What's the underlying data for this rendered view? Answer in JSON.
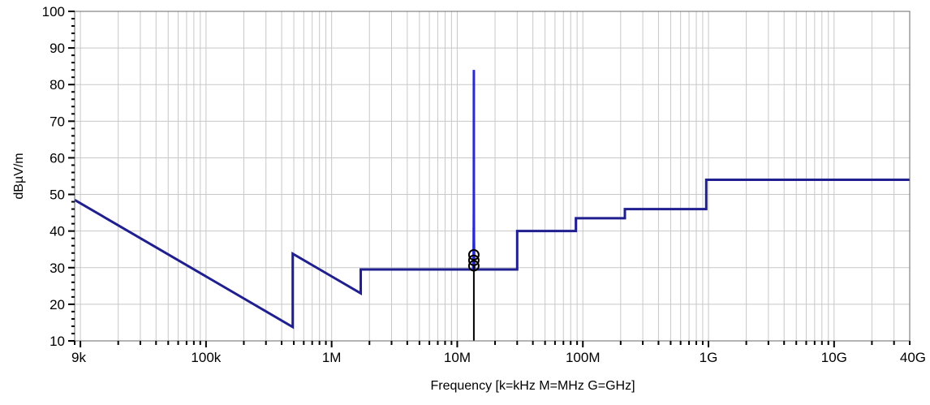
{
  "chart_data": {
    "type": "line",
    "title": "",
    "xlabel": "Frequency [k=kHz M=MHz G=GHz]",
    "ylabel": "dBµV/m",
    "x_scale": "log",
    "xlim": [
      9000,
      40000000000
    ],
    "ylim": [
      10,
      100
    ],
    "grid": true,
    "x_ticks": [
      {
        "value": 9000,
        "label": "9k"
      },
      {
        "value": 100000,
        "label": "100k"
      },
      {
        "value": 1000000,
        "label": "1M"
      },
      {
        "value": 10000000,
        "label": "10M"
      },
      {
        "value": 100000000,
        "label": "100M"
      },
      {
        "value": 1000000000,
        "label": "1G"
      },
      {
        "value": 10000000000,
        "label": "10G"
      },
      {
        "value": 40000000000,
        "label": "40G"
      }
    ],
    "y_ticks": [
      10,
      20,
      30,
      40,
      50,
      60,
      70,
      80,
      90,
      100
    ],
    "series": [
      {
        "color": "#1f1f8f",
        "x": [
          9000,
          490000,
          490000,
          1705000,
          1705000,
          13553000,
          13553000,
          13567000,
          13567000,
          30000000,
          30000000,
          88000000,
          88000000,
          216000000,
          216000000,
          960000000,
          960000000,
          40000000000
        ],
        "y": [
          48.5,
          13.8,
          33.8,
          23.0,
          29.5,
          29.5,
          40.5,
          40.5,
          29.5,
          29.5,
          40.0,
          40.0,
          43.5,
          43.5,
          46.0,
          46.0,
          54.0,
          54.0
        ]
      },
      {
        "color": "#2a2ad0",
        "x": [
          13400000,
          13480000,
          13530000,
          13553000,
          13560000,
          13567000,
          13590000,
          13650000,
          13720000
        ],
        "y": [
          29.5,
          33.0,
          38.0,
          50.0,
          84.0,
          50.0,
          38.0,
          33.0,
          29.5
        ]
      }
    ],
    "markers": [
      {
        "x": 13560000,
        "y": 33.5
      },
      {
        "x": 13560000,
        "y": 32.0
      },
      {
        "x": 13560000,
        "y": 30.5
      }
    ],
    "vertical_line": {
      "x": 13560000,
      "from": 10,
      "to": 30.5,
      "color": "#000000"
    }
  }
}
